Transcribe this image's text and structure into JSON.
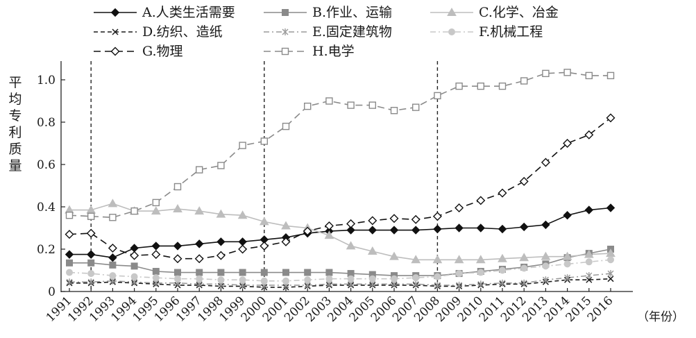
{
  "chart_data": {
    "type": "line",
    "ylabel": "平均专利质量",
    "xlabel": "（年份）",
    "x": [
      1991,
      1992,
      1993,
      1994,
      1995,
      1996,
      1997,
      1998,
      1999,
      2000,
      2001,
      2002,
      2003,
      2004,
      2005,
      2006,
      2007,
      2008,
      2009,
      2010,
      2011,
      2012,
      2013,
      2014,
      2015,
      2016
    ],
    "ylim": [
      0,
      1.0
    ],
    "yticks": [
      "0",
      "0.2",
      "0.4",
      "0.6",
      "0.8",
      "1.0"
    ],
    "vertical_reference_lines_at": [
      1992,
      2000,
      2008
    ],
    "legend_position": "top",
    "series": [
      {
        "name": "A.人类生活需要",
        "color": "#111111",
        "dash": "solid",
        "marker": "diamond-filled",
        "values": [
          0.175,
          0.175,
          0.16,
          0.205,
          0.215,
          0.215,
          0.225,
          0.235,
          0.235,
          0.245,
          0.255,
          0.275,
          0.285,
          0.29,
          0.29,
          0.29,
          0.29,
          0.295,
          0.3,
          0.3,
          0.295,
          0.305,
          0.315,
          0.36,
          0.385,
          0.395
        ]
      },
      {
        "name": "B.作业、运输",
        "color": "#8a8a8a",
        "dash": "solid",
        "marker": "square-filled",
        "values": [
          0.135,
          0.135,
          0.125,
          0.12,
          0.095,
          0.09,
          0.09,
          0.09,
          0.09,
          0.09,
          0.09,
          0.09,
          0.09,
          0.085,
          0.08,
          0.075,
          0.075,
          0.075,
          0.085,
          0.095,
          0.105,
          0.115,
          0.13,
          0.16,
          0.18,
          0.2
        ]
      },
      {
        "name": "C.化学、冶金",
        "color": "#bdbdbd",
        "dash": "solid",
        "marker": "triangle-filled",
        "values": [
          0.385,
          0.385,
          0.415,
          0.38,
          0.38,
          0.39,
          0.38,
          0.365,
          0.36,
          0.33,
          0.31,
          0.3,
          0.265,
          0.215,
          0.19,
          0.165,
          0.15,
          0.15,
          0.15,
          0.15,
          0.155,
          0.16,
          0.165,
          0.165,
          0.175,
          0.18
        ]
      },
      {
        "name": "D.纺织、造纸",
        "color": "#1a1a1a",
        "dash": "dash",
        "marker": "x",
        "values": [
          0.04,
          0.04,
          0.045,
          0.04,
          0.035,
          0.03,
          0.03,
          0.025,
          0.025,
          0.02,
          0.02,
          0.025,
          0.03,
          0.03,
          0.03,
          0.03,
          0.03,
          0.025,
          0.025,
          0.03,
          0.035,
          0.035,
          0.045,
          0.055,
          0.055,
          0.06
        ]
      },
      {
        "name": "E.固定建筑物",
        "color": "#9a9a9a",
        "dash": "dashdot",
        "marker": "star",
        "values": [
          0.045,
          0.045,
          0.05,
          0.045,
          0.04,
          0.04,
          0.035,
          0.035,
          0.03,
          0.03,
          0.03,
          0.03,
          0.035,
          0.035,
          0.035,
          0.035,
          0.035,
          0.03,
          0.03,
          0.035,
          0.04,
          0.04,
          0.055,
          0.065,
          0.075,
          0.085
        ]
      },
      {
        "name": "F.机械工程",
        "color": "#c8c8c8",
        "dash": "dashdot",
        "marker": "circle-filled",
        "values": [
          0.09,
          0.085,
          0.075,
          0.07,
          0.065,
          0.06,
          0.06,
          0.055,
          0.055,
          0.05,
          0.05,
          0.055,
          0.06,
          0.06,
          0.06,
          0.06,
          0.065,
          0.07,
          0.085,
          0.09,
          0.1,
          0.11,
          0.12,
          0.13,
          0.14,
          0.15
        ]
      },
      {
        "name": "G.物理",
        "color": "#111111",
        "dash": "longdash",
        "marker": "diamond-open",
        "values": [
          0.27,
          0.275,
          0.205,
          0.17,
          0.175,
          0.155,
          0.155,
          0.17,
          0.2,
          0.215,
          0.235,
          0.285,
          0.31,
          0.32,
          0.335,
          0.345,
          0.34,
          0.355,
          0.395,
          0.43,
          0.465,
          0.52,
          0.61,
          0.7,
          0.74,
          0.82
        ]
      },
      {
        "name": "H.电学",
        "color": "#8a8a8a",
        "dash": "longdash",
        "marker": "square-open",
        "values": [
          0.36,
          0.355,
          0.35,
          0.38,
          0.42,
          0.495,
          0.575,
          0.595,
          0.69,
          0.71,
          0.78,
          0.875,
          0.9,
          0.88,
          0.88,
          0.855,
          0.87,
          0.925,
          0.97,
          0.97,
          0.97,
          0.995,
          1.03,
          1.035,
          1.02,
          1.02
        ]
      }
    ]
  }
}
